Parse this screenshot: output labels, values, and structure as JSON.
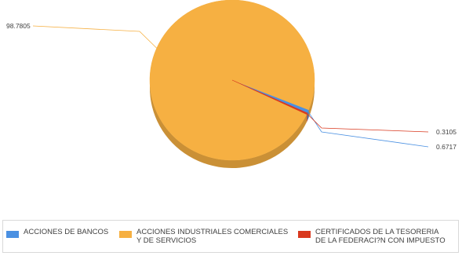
{
  "chart_data": {
    "type": "pie",
    "series": [
      {
        "name": "ACCIONES DE BANCOS",
        "value": 0.6717,
        "color": "#4a90e2",
        "label": "0.6717"
      },
      {
        "name": "ACCIONES INDUSTRIALES COMERCIALES Y DE SERVICIOS",
        "value": 98.7805,
        "color": "#f6b042",
        "label": "98.7805"
      },
      {
        "name": "CERTIFICADOS DE LA TESORERIA DE LA FEDERACI?N CON IMPUESTO",
        "value": 0.3105,
        "color": "#d9391f",
        "label": "0.3105"
      }
    ],
    "legend_position": "bottom",
    "style": "3d"
  },
  "legend": {
    "items": [
      {
        "label": "ACCIONES DE BANCOS",
        "color": "#4a90e2"
      },
      {
        "label": "ACCIONES INDUSTRIALES COMERCIALES\nY DE SERVICIOS",
        "color": "#f6b042"
      },
      {
        "label": "CERTIFICADOS DE LA TESORERIA\nDE LA FEDERACI?N CON IMPUESTO",
        "color": "#d9391f"
      }
    ]
  }
}
